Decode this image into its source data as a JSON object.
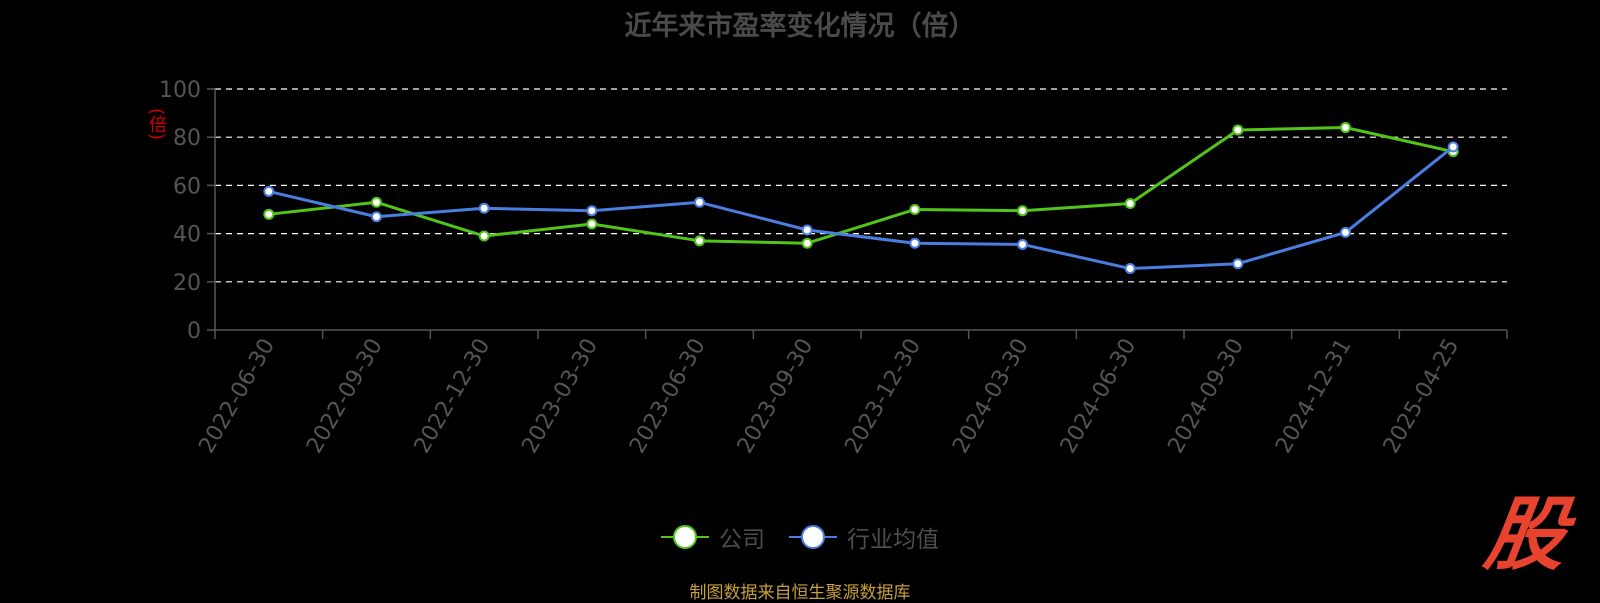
{
  "title": "近年来市盈率变化情况（倍）",
  "unit": "(倍)",
  "legend": {
    "company": "公司",
    "industry": "行业均值"
  },
  "source": "制图数据来自恒生聚源数据库",
  "logo_text": "股",
  "colors": {
    "company": "#52c41a",
    "industry": "#4a7ee0",
    "grid": "#ffffff",
    "axis": "#555555",
    "unit": "#cc0000",
    "source": "#c8a03a",
    "logo": "#e8432e"
  },
  "chart_data": {
    "type": "line",
    "title": "近年来市盈率变化情况（倍）",
    "ylabel": "(倍)",
    "xlabel": "",
    "ylim": [
      0,
      100
    ],
    "yticks": [
      0,
      20,
      40,
      60,
      80,
      100
    ],
    "grid": true,
    "legend_position": "bottom",
    "categories": [
      "2022-06-30",
      "2022-09-30",
      "2022-12-30",
      "2023-03-30",
      "2023-06-30",
      "2023-09-30",
      "2023-12-30",
      "2024-03-30",
      "2024-06-30",
      "2024-09-30",
      "2024-12-31",
      "2025-04-25"
    ],
    "series": [
      {
        "name": "公司",
        "color": "#52c41a",
        "values": [
          48,
          53,
          39,
          44,
          37,
          36,
          50,
          49.5,
          52.5,
          83,
          84,
          74
        ]
      },
      {
        "name": "行业均值",
        "color": "#4a7ee0",
        "values": [
          57.5,
          47,
          50.5,
          49.5,
          53,
          41.5,
          36,
          35.5,
          25.5,
          27.5,
          40.5,
          76
        ]
      }
    ]
  }
}
